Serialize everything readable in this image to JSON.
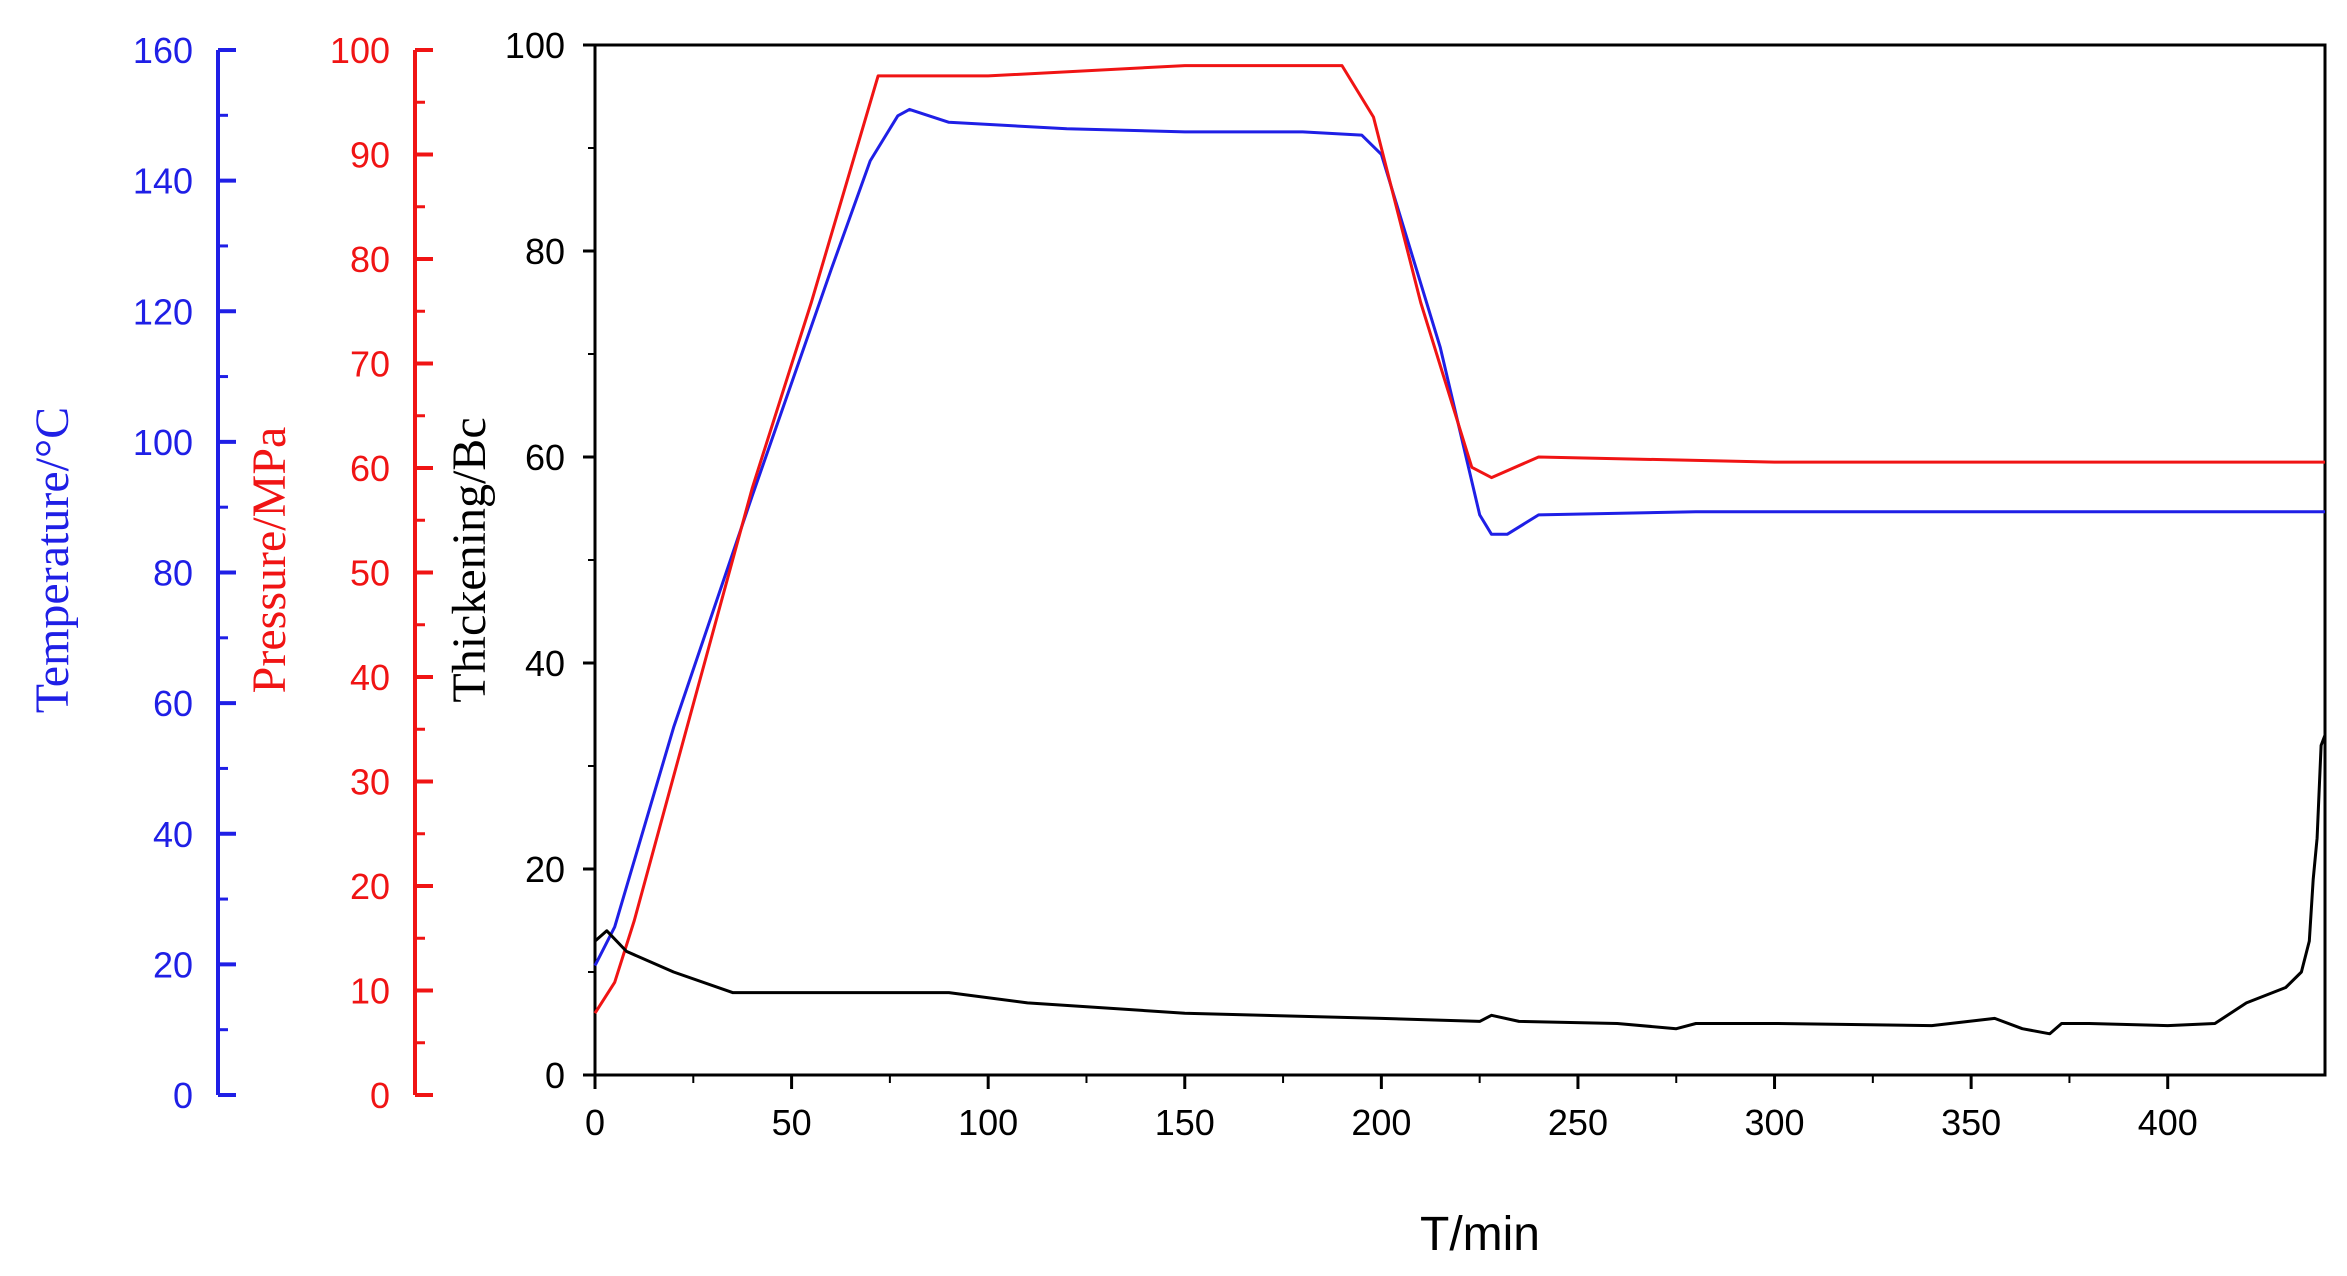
{
  "chart_data": {
    "type": "line",
    "title": "",
    "xlabel": "T/min",
    "xlim": [
      0,
      440
    ],
    "xticks": [
      0,
      50,
      100,
      150,
      200,
      250,
      300,
      350,
      400
    ],
    "axes": {
      "temperature": {
        "label": "Temperature/°C",
        "ylim": [
          0,
          160
        ],
        "ticks": [
          0,
          20,
          40,
          60,
          80,
          100,
          120,
          140,
          160
        ],
        "color": "#1f1fe6"
      },
      "pressure": {
        "label": "Pressure/MPa",
        "ylim": [
          0,
          100
        ],
        "ticks": [
          0,
          10,
          20,
          30,
          40,
          50,
          60,
          70,
          80,
          90,
          100
        ],
        "color": "#f01414"
      },
      "thickening": {
        "label": "Thickening/Bc",
        "ylim": [
          0,
          100
        ],
        "ticks": [
          0,
          20,
          40,
          60,
          80,
          100
        ],
        "color": "#000000"
      }
    },
    "grid": false,
    "legend": "none",
    "series": [
      {
        "axis": "temperature",
        "color": "#1f1fe6",
        "x": [
          0,
          5,
          20,
          40,
          60,
          70,
          77,
          80,
          90,
          120,
          150,
          180,
          195,
          200,
          215,
          225,
          228,
          232,
          240,
          280,
          350,
          440
        ],
        "y": [
          17,
          23,
          54,
          90,
          125,
          142,
          149,
          150,
          148,
          147,
          146.5,
          146.5,
          146,
          143,
          113,
          87,
          84,
          84,
          87,
          87.5,
          87.5,
          87.5
        ]
      },
      {
        "axis": "pressure",
        "color": "#f01414",
        "x": [
          0,
          5,
          10,
          20,
          40,
          50,
          55,
          72,
          80,
          100,
          150,
          190,
          198,
          210,
          223,
          228,
          240,
          300,
          440
        ],
        "y": [
          6,
          9,
          15,
          29,
          57,
          69,
          75,
          97,
          97,
          97,
          98,
          98,
          93,
          75,
          59,
          58,
          60,
          59.5,
          59.5
        ]
      },
      {
        "axis": "thickening",
        "color": "#000000",
        "x": [
          0,
          3,
          8,
          20,
          35,
          50,
          70,
          90,
          110,
          150,
          200,
          225,
          228,
          235,
          260,
          275,
          280,
          300,
          340,
          356,
          363,
          370,
          373,
          380,
          400,
          412,
          420,
          430,
          434,
          436,
          437,
          438,
          439,
          440
        ],
        "y": [
          13,
          14,
          12,
          10,
          8,
          8,
          8,
          8,
          7,
          6,
          5.5,
          5.2,
          5.8,
          5.2,
          5,
          4.5,
          5,
          5,
          4.8,
          5.5,
          4.5,
          4,
          5,
          5,
          4.8,
          5,
          7,
          8.5,
          10,
          13,
          19,
          23,
          32,
          33
        ]
      }
    ]
  }
}
